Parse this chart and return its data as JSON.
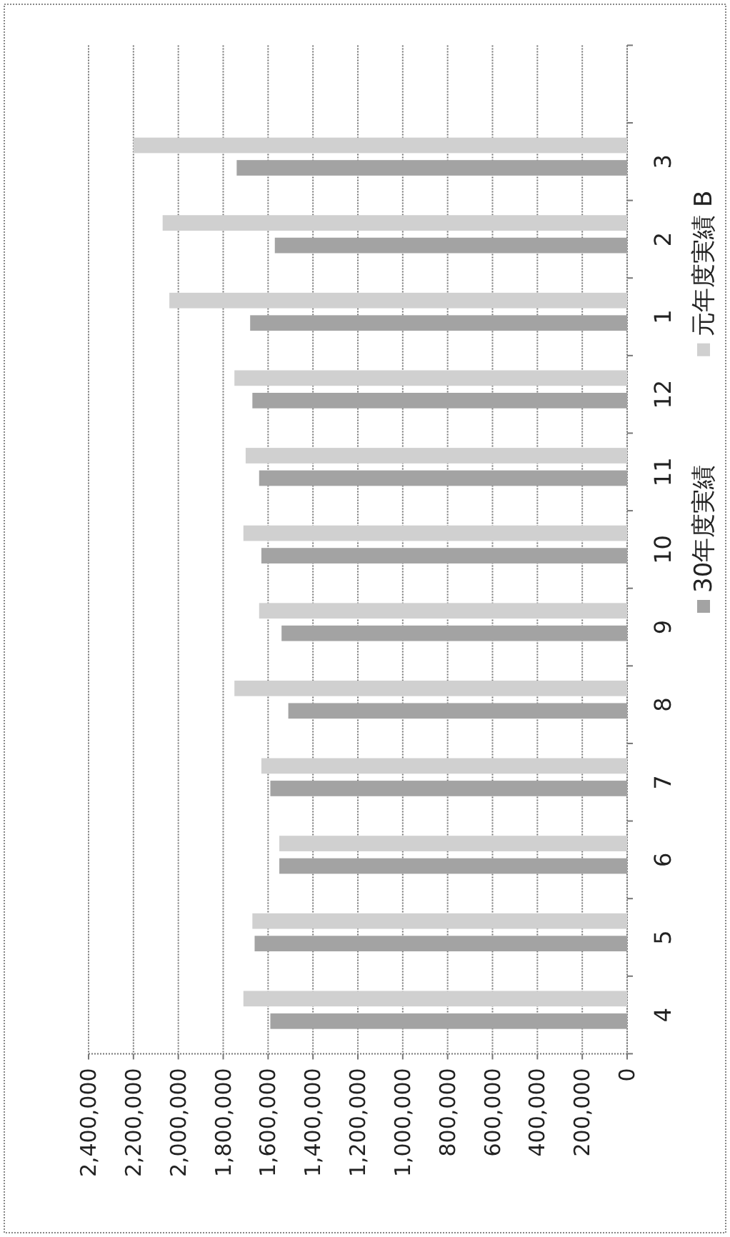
{
  "chart_data": {
    "type": "bar",
    "orientation": "horizontal",
    "categories": [
      null,
      "3",
      "2",
      "1",
      "12",
      "11",
      "10",
      "9",
      "8",
      "7",
      "6",
      "5",
      "4"
    ],
    "series": [
      {
        "name": "30年度実績",
        "color": "#a3a3a3",
        "values": [
          null,
          1740000,
          1570000,
          1680000,
          1670000,
          1640000,
          1630000,
          1540000,
          1510000,
          1590000,
          1550000,
          1660000,
          1590000
        ]
      },
      {
        "name": "元年度実績 B",
        "color": "#d0d0d0",
        "values": [
          null,
          2200000,
          2070000,
          2040000,
          1750000,
          1700000,
          1710000,
          1640000,
          1750000,
          1630000,
          1550000,
          1670000,
          1710000
        ]
      }
    ],
    "xlim": [
      2400000,
      0
    ],
    "xticks": [
      {
        "value": 2400000,
        "label": "2,400,000"
      },
      {
        "value": 2200000,
        "label": "2,200,000"
      },
      {
        "value": 2000000,
        "label": "2,000,000"
      },
      {
        "value": 1800000,
        "label": "1,800,000"
      },
      {
        "value": 1600000,
        "label": "1,600,000"
      },
      {
        "value": 1400000,
        "label": "1,400,000"
      },
      {
        "value": 1200000,
        "label": "1,200,000"
      },
      {
        "value": 1000000,
        "label": "1,000,000"
      },
      {
        "value": 800000,
        "label": "800,000"
      },
      {
        "value": 600000,
        "label": "600,000"
      },
      {
        "value": 400000,
        "label": "400,000"
      },
      {
        "value": 200000,
        "label": "200,000"
      },
      0
    ],
    "grid": "x",
    "legend": "right"
  }
}
